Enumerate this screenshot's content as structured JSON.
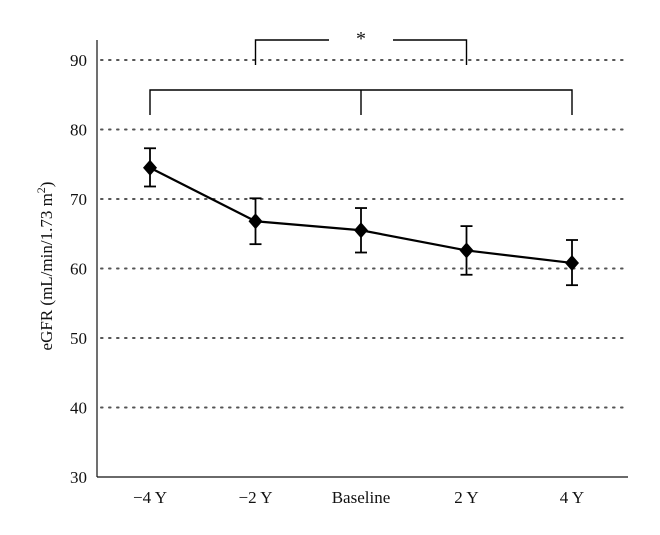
{
  "chart_data": {
    "type": "line",
    "title": "",
    "xlabel": "",
    "ylabel": "eGFR (mL/min/1.73 m",
    "ylabel_superscript": "2",
    "ylabel_close": ")",
    "categories": [
      "−4 Y",
      "−2 Y",
      "Baseline",
      "2 Y",
      "4 Y"
    ],
    "series": [
      {
        "values": [
          74.5,
          66.8,
          65.5,
          62.6,
          60.8
        ],
        "err_low": [
          71.8,
          63.5,
          62.3,
          59.1,
          57.6
        ],
        "err_high": [
          77.3,
          70.1,
          68.7,
          66.1,
          64.1
        ],
        "marker": "diamond",
        "color": "#000000"
      }
    ],
    "ylim": [
      30,
      95
    ],
    "yticks": [
      30,
      40,
      50,
      60,
      70,
      80,
      90
    ],
    "grid": "horizontal dotted",
    "significance": {
      "label": "*",
      "brackets": [
        {
          "from": "−2 Y",
          "to": "2 Y",
          "tier": "upper"
        },
        {
          "from": "−4 Y",
          "to": "4 Y",
          "center": "Baseline",
          "tier": "lower"
        }
      ]
    }
  }
}
